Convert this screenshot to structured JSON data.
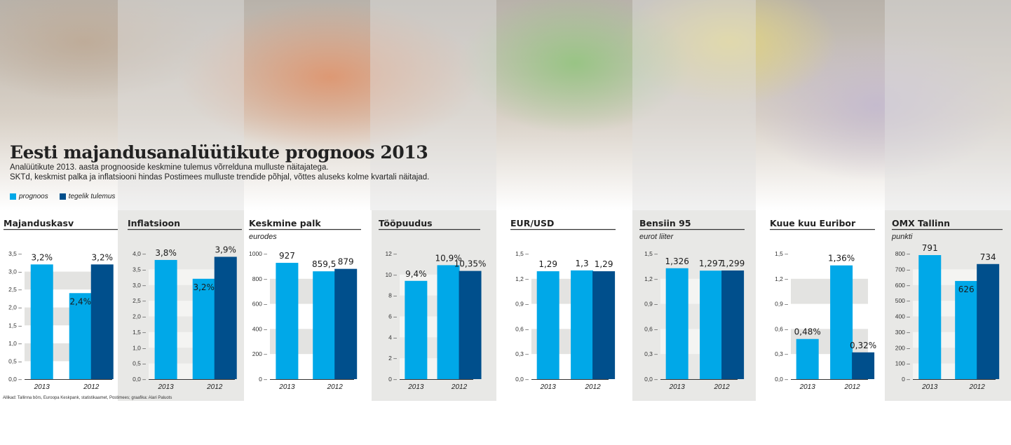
{
  "header": {
    "title": "Eesti majandusanalüütikute prognoos 2013",
    "subtitle_line1": "Analüütikute 2013. aasta prognooside keskmine tulemus võrrelduna mulluste näitajatega.",
    "subtitle_line2": "SKTd, keskmist palka ja inflatsiooni hindas Postimees mulluste trendide põhjal, võttes aluseks kolme kvartali näitajad."
  },
  "legend": [
    {
      "label": "prognoos",
      "color": "#00a8e8"
    },
    {
      "label": "tegelik tulemus",
      "color": "#004f8c"
    }
  ],
  "colors": {
    "forecast": "#00a8e8",
    "actual": "#004f8c"
  },
  "source": "Allikad: Tallinna börs, Euroopa Keskpank, statistikaamet, Postimees; graafika: Alari Paluots",
  "chart_data": [
    {
      "type": "bar",
      "title": "Majanduskasv",
      "unit": "",
      "categories": [
        "2013",
        "2012"
      ],
      "ylim": [
        0,
        3.5
      ],
      "ticks": [
        "0,0",
        "0,5",
        "1,0",
        "1,5",
        "2,0",
        "2,5",
        "3,0",
        "3,5"
      ],
      "bars": [
        {
          "category": "2013",
          "series": "prognoos",
          "value": 3.2,
          "label": "3,2%"
        },
        {
          "category": "2012",
          "series": "prognoos",
          "value": 2.4,
          "label": "2,4%"
        },
        {
          "category": "2012",
          "series": "tegelik tulemus",
          "value": 3.2,
          "label": "3,2%"
        }
      ]
    },
    {
      "type": "bar",
      "title": "Inflatsioon",
      "unit": "",
      "categories": [
        "2013",
        "2012"
      ],
      "ylim": [
        0,
        4.0
      ],
      "ticks": [
        "0,0",
        "0,5",
        "1,0",
        "1,5",
        "2,0",
        "2,5",
        "3,0",
        "3,5",
        "4,0"
      ],
      "bars": [
        {
          "category": "2013",
          "series": "prognoos",
          "value": 3.8,
          "label": "3,8%"
        },
        {
          "category": "2012",
          "series": "prognoos",
          "value": 3.2,
          "label": "3,2%"
        },
        {
          "category": "2012",
          "series": "tegelik tulemus",
          "value": 3.9,
          "label": "3,9%"
        }
      ]
    },
    {
      "type": "bar",
      "title": "Keskmine palk",
      "unit": "eurodes",
      "categories": [
        "2013",
        "2012"
      ],
      "ylim": [
        0,
        1000
      ],
      "ticks": [
        "0",
        "200",
        "400",
        "600",
        "800",
        "1000"
      ],
      "bars": [
        {
          "category": "2013",
          "series": "prognoos",
          "value": 927,
          "label": "927"
        },
        {
          "category": "2012",
          "series": "prognoos",
          "value": 859.5,
          "label": "859,5"
        },
        {
          "category": "2012",
          "series": "tegelik tulemus",
          "value": 879,
          "label": "879"
        }
      ]
    },
    {
      "type": "bar",
      "title": "Tööpuudus",
      "unit": "",
      "categories": [
        "2013",
        "2012"
      ],
      "ylim": [
        0,
        12
      ],
      "ticks": [
        "0",
        "2",
        "4",
        "6",
        "8",
        "10",
        "12"
      ],
      "bars": [
        {
          "category": "2013",
          "series": "prognoos",
          "value": 9.4,
          "label": "9,4%"
        },
        {
          "category": "2012",
          "series": "prognoos",
          "value": 10.9,
          "label": "10,9%"
        },
        {
          "category": "2012",
          "series": "tegelik tulemus",
          "value": 10.35,
          "label": "10,35%"
        }
      ]
    },
    {
      "type": "bar",
      "title": "EUR/USD",
      "unit": "",
      "categories": [
        "2013",
        "2012"
      ],
      "ylim": [
        0,
        1.5
      ],
      "ticks": [
        "0,0",
        "0,3",
        "0,6",
        "0,9",
        "1,2",
        "1,5"
      ],
      "bars": [
        {
          "category": "2013",
          "series": "prognoos",
          "value": 1.29,
          "label": "1,29"
        },
        {
          "category": "2012",
          "series": "prognoos",
          "value": 1.3,
          "label": "1,3"
        },
        {
          "category": "2012",
          "series": "tegelik tulemus",
          "value": 1.29,
          "label": "1,29"
        }
      ]
    },
    {
      "type": "bar",
      "title": "Bensiin 95",
      "unit": "eurot liiter",
      "categories": [
        "2013",
        "2012"
      ],
      "ylim": [
        0,
        1.5
      ],
      "ticks": [
        "0,0",
        "0,3",
        "0,6",
        "0,9",
        "1,2",
        "1,5"
      ],
      "bars": [
        {
          "category": "2013",
          "series": "prognoos",
          "value": 1.326,
          "label": "1,326"
        },
        {
          "category": "2012",
          "series": "prognoos",
          "value": 1.297,
          "label": "1,297"
        },
        {
          "category": "2012",
          "series": "tegelik tulemus",
          "value": 1.299,
          "label": "1,299"
        }
      ]
    },
    {
      "type": "bar",
      "title": "Kuue kuu Euribor",
      "unit": "",
      "categories": [
        "2013",
        "2012"
      ],
      "ylim": [
        0,
        1.5
      ],
      "ticks": [
        "0,0",
        "0,3",
        "0,6",
        "0,9",
        "1,2",
        "1,5"
      ],
      "bars": [
        {
          "category": "2013",
          "series": "prognoos",
          "value": 0.48,
          "label": "0,48%"
        },
        {
          "category": "2012",
          "series": "prognoos",
          "value": 1.36,
          "label": "1,36%"
        },
        {
          "category": "2012",
          "series": "tegelik tulemus",
          "value": 0.32,
          "label": "0,32%"
        }
      ]
    },
    {
      "type": "bar",
      "title": "OMX Tallinn",
      "unit": "punkti",
      "categories": [
        "2013",
        "2012"
      ],
      "ylim": [
        0,
        800
      ],
      "ticks": [
        "0",
        "100",
        "200",
        "300",
        "400",
        "500",
        "600",
        "700",
        "800"
      ],
      "bars": [
        {
          "category": "2013",
          "series": "prognoos",
          "value": 791,
          "label": "791"
        },
        {
          "category": "2012",
          "series": "prognoos",
          "value": 626,
          "label": "626"
        },
        {
          "category": "2012",
          "series": "tegelik tulemus",
          "value": 734,
          "label": "734"
        }
      ]
    }
  ]
}
